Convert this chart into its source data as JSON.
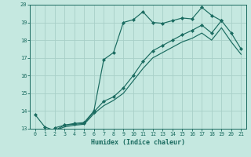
{
  "xlabel": "Humidex (Indice chaleur)",
  "xlim": [
    -0.5,
    21.5
  ],
  "ylim": [
    13,
    20
  ],
  "xticks": [
    0,
    1,
    2,
    3,
    4,
    5,
    6,
    7,
    8,
    9,
    10,
    11,
    12,
    13,
    14,
    15,
    16,
    17,
    18,
    19,
    20,
    21
  ],
  "yticks": [
    13,
    14,
    15,
    16,
    17,
    18,
    19,
    20
  ],
  "bg_color": "#c5e8e0",
  "line_color": "#1a6b60",
  "grid_color": "#a8cfc8",
  "lines": [
    {
      "x": [
        0,
        1,
        2,
        3,
        4,
        5,
        6,
        7,
        8,
        9,
        10,
        11,
        12,
        13,
        14,
        15,
        16,
        17,
        18,
        19
      ],
      "y": [
        13.8,
        13.1,
        12.9,
        13.2,
        13.3,
        13.35,
        14.0,
        16.9,
        17.3,
        19.0,
        19.15,
        19.6,
        19.0,
        18.95,
        19.1,
        19.25,
        19.2,
        19.85,
        19.4,
        19.1
      ],
      "style": "-",
      "marker": "D",
      "markersize": 2.0
    },
    {
      "x": [
        2,
        3,
        4,
        5,
        6,
        7,
        8,
        9,
        10,
        11,
        12,
        13,
        14,
        15,
        16,
        17,
        18,
        19,
        20,
        21
      ],
      "y": [
        13.05,
        13.2,
        13.25,
        13.3,
        13.95,
        14.55,
        14.8,
        15.3,
        16.0,
        16.8,
        17.4,
        17.7,
        18.0,
        18.3,
        18.55,
        18.85,
        18.4,
        19.1,
        18.4,
        17.5
      ],
      "style": "-",
      "marker": "D",
      "markersize": 2.0
    },
    {
      "x": [
        2,
        3,
        4,
        5,
        6,
        7,
        8,
        9,
        10,
        11,
        12,
        13,
        14,
        15,
        16,
        17,
        18,
        19,
        20,
        21
      ],
      "y": [
        12.9,
        13.1,
        13.2,
        13.25,
        13.85,
        14.3,
        14.6,
        15.0,
        15.7,
        16.4,
        17.0,
        17.3,
        17.6,
        17.9,
        18.1,
        18.4,
        18.0,
        18.7,
        17.9,
        17.2
      ],
      "style": "-",
      "marker": null,
      "markersize": 0
    }
  ]
}
